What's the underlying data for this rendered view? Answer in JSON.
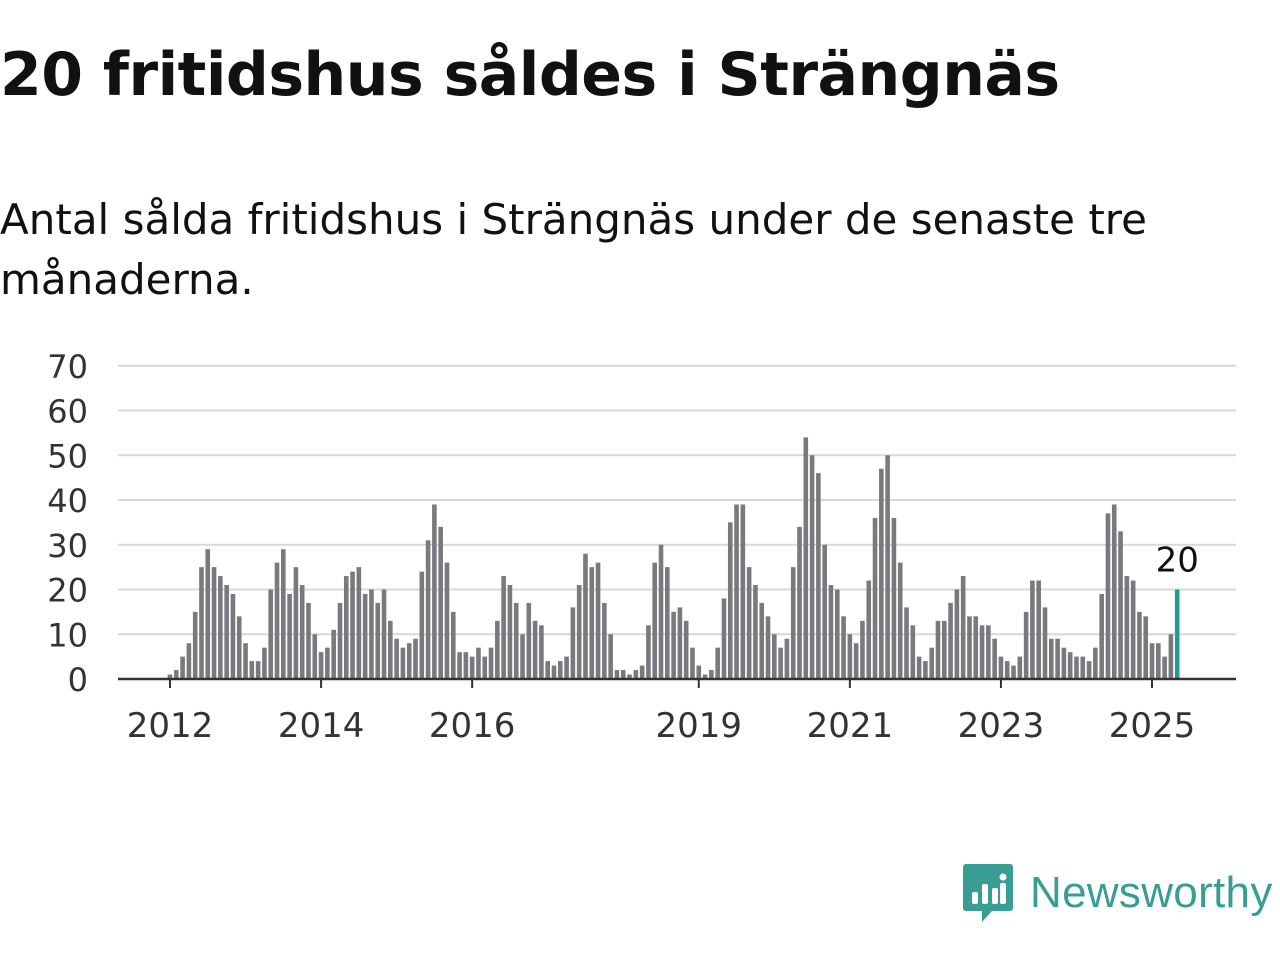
{
  "header": {
    "title": "20 fritidshus såldes i Strängnäs",
    "subtitle": "Antal sålda fritidshus i Strängnäs under de senaste tre månaderna."
  },
  "brand": {
    "name": "Newsworthy",
    "icon": "newsworthy-logo-icon",
    "color": "#3a9d94"
  },
  "colors": {
    "bar": "#7a797e",
    "highlight": "#1f9e8f",
    "grid": "#d8d8d8",
    "axis": "#333333"
  },
  "chart_data": {
    "type": "bar",
    "title": "",
    "xlabel": "",
    "ylabel": "",
    "ylim": [
      0,
      70
    ],
    "yticks": [
      0,
      10,
      20,
      30,
      40,
      50,
      60,
      70
    ],
    "xtick_labels": [
      "2012",
      "2014",
      "2016",
      "2019",
      "2021",
      "2023",
      "2025"
    ],
    "grid": true,
    "start_month": "2012-01",
    "highlight_label": "20",
    "values": [
      1,
      2,
      5,
      8,
      15,
      25,
      29,
      25,
      23,
      21,
      19,
      14,
      8,
      4,
      4,
      7,
      20,
      26,
      29,
      19,
      25,
      21,
      17,
      10,
      6,
      7,
      11,
      17,
      23,
      24,
      25,
      19,
      20,
      17,
      20,
      13,
      9,
      7,
      8,
      9,
      24,
      31,
      39,
      34,
      26,
      15,
      6,
      6,
      5,
      7,
      5,
      7,
      13,
      23,
      21,
      17,
      10,
      17,
      13,
      12,
      4,
      3,
      4,
      5,
      16,
      21,
      28,
      25,
      26,
      17,
      10,
      2,
      2,
      1,
      2,
      3,
      12,
      26,
      30,
      25,
      15,
      16,
      13,
      7,
      3,
      1,
      2,
      7,
      18,
      35,
      39,
      39,
      25,
      21,
      17,
      14,
      10,
      7,
      9,
      25,
      34,
      54,
      50,
      46,
      30,
      21,
      20,
      14,
      10,
      8,
      13,
      22,
      36,
      47,
      50,
      36,
      26,
      16,
      12,
      5,
      4,
      7,
      13,
      13,
      17,
      20,
      23,
      14,
      14,
      12,
      12,
      9,
      5,
      4,
      3,
      5,
      15,
      22,
      22,
      16,
      9,
      9,
      7,
      6,
      5,
      5,
      4,
      7,
      19,
      37,
      39,
      33,
      23,
      22,
      15,
      14,
      8,
      8,
      5,
      10,
      20
    ]
  }
}
